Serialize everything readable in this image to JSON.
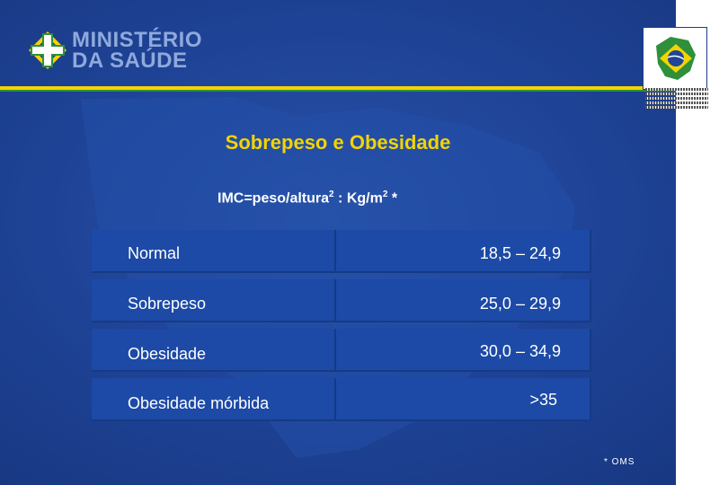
{
  "header": {
    "logo_line1": "MINISTÉRIO",
    "logo_line2": "DA SAÚDE"
  },
  "slide": {
    "title": "Sobrepeso e Obesidade",
    "formula_prefix": "IMC=peso/altura",
    "formula_sup1": "2",
    "formula_mid": " : Kg/m",
    "formula_sup2": "2",
    "formula_suffix": " *",
    "footnote": "* OMS"
  },
  "table": {
    "rows": [
      {
        "category": "Normal",
        "range": "18,5 – 24,9"
      },
      {
        "category": "Sobrepeso",
        "range": "25,0 – 29,9"
      },
      {
        "category": "Obesidade",
        "range": "30,0 – 34,9"
      },
      {
        "category": "Obesidade mórbida",
        "range": ">35"
      }
    ]
  },
  "colors": {
    "background": "#1f4498",
    "title": "#f3d400",
    "stripe_yellow": "#f3d400",
    "stripe_green": "#2f8f3a",
    "cell": "#1c4aa6"
  }
}
